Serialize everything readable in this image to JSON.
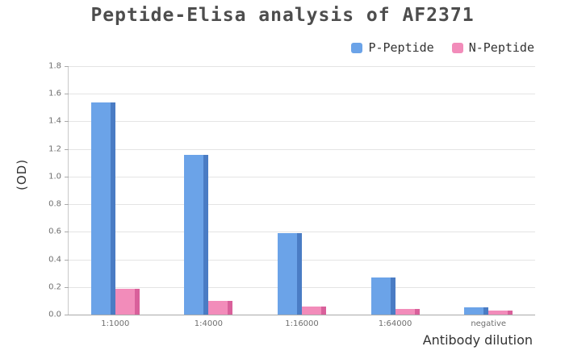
{
  "title": "Peptide-Elisa analysis of AF2371",
  "chart_data": {
    "type": "bar",
    "title": "Peptide-Elisa analysis of AF2371",
    "xlabel": "Antibody dilution",
    "ylabel": "(OD)",
    "ylim": [
      0,
      1.8
    ],
    "ytick_step": 0.2,
    "grid": true,
    "legend_position": "top-right",
    "categories": [
      "1:1000",
      "1:4000",
      "1:16000",
      "1:64000",
      "negative"
    ],
    "series": [
      {
        "name": "P-Peptide",
        "color": "#6ba3e8",
        "shade": "#4a7cc4",
        "values": [
          1.54,
          1.16,
          0.59,
          0.27,
          0.05
        ]
      },
      {
        "name": "N-Peptide",
        "color": "#f28cba",
        "shade": "#d9609b",
        "values": [
          0.19,
          0.1,
          0.06,
          0.04,
          0.03
        ]
      }
    ]
  }
}
